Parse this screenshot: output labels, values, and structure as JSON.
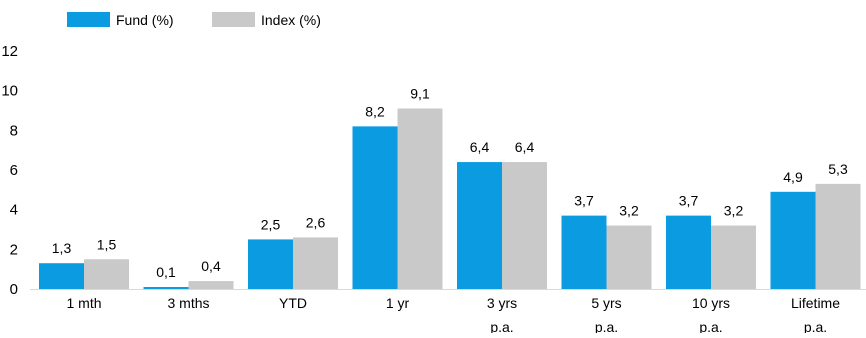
{
  "chart_data": {
    "type": "bar",
    "categories": [
      [
        "1 mth"
      ],
      [
        "3 mths"
      ],
      [
        "YTD"
      ],
      [
        "1 yr"
      ],
      [
        "3 yrs",
        "p.a."
      ],
      [
        "5 yrs",
        "p.a."
      ],
      [
        "10 yrs",
        "p.a."
      ],
      [
        "Lifetime",
        "p.a."
      ]
    ],
    "series": [
      {
        "name": "Fund (%)",
        "color": "#0B9BE0",
        "values": [
          1.3,
          0.1,
          2.5,
          8.2,
          6.4,
          3.7,
          3.7,
          4.9
        ],
        "labels": [
          "1,3",
          "0,1",
          "2,5",
          "8,2",
          "6,4",
          "3,7",
          "3,7",
          "4,9"
        ]
      },
      {
        "name": "Index (%)",
        "color": "#C9C9C9",
        "values": [
          1.5,
          0.4,
          2.6,
          9.1,
          6.4,
          3.2,
          3.2,
          5.3
        ],
        "labels": [
          "1,5",
          "0,4",
          "2,6",
          "9,1",
          "6,4",
          "3,2",
          "3,2",
          "5,3"
        ]
      }
    ],
    "y_ticks": [
      "0",
      "2",
      "4",
      "6",
      "8",
      "10",
      "12"
    ],
    "ylim": [
      0,
      12
    ],
    "grid": false,
    "legend_position": "top-left"
  }
}
